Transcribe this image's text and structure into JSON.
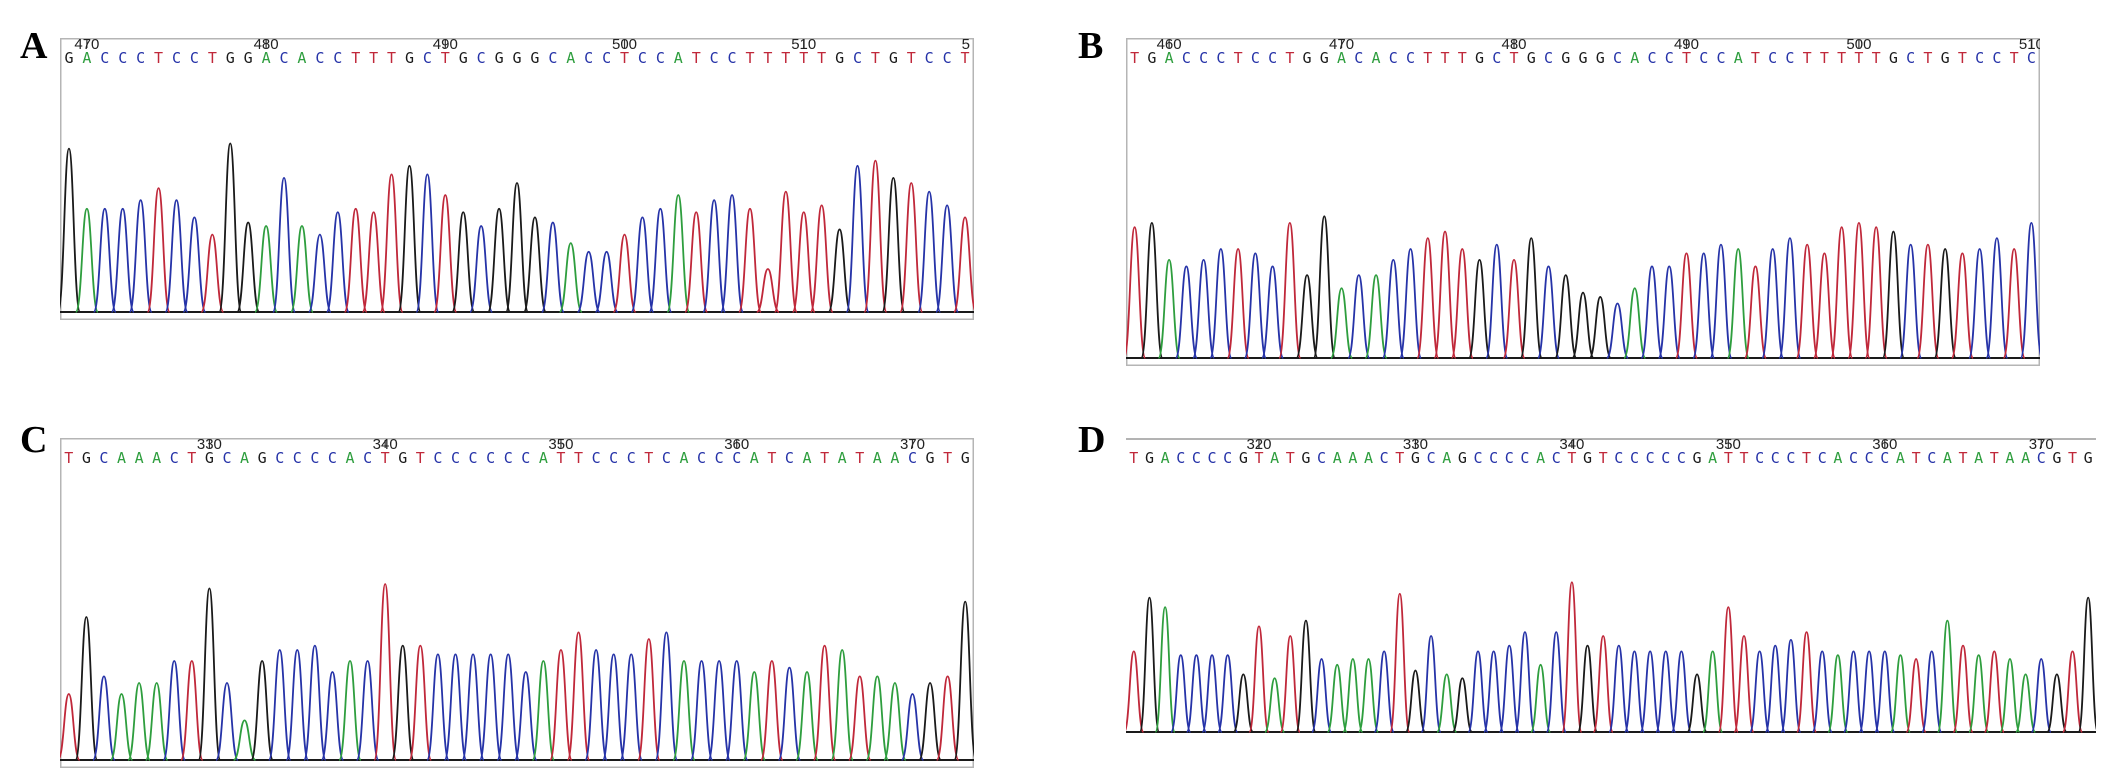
{
  "figure": {
    "colors": {
      "A": "#2e9e3e",
      "C": "#2633a8",
      "G": "#1a1a1a",
      "T": "#c0283a"
    }
  },
  "chart_data": [
    {
      "type": "line",
      "panel": "A",
      "sequence": "GACCCTCCTGGACACCTTTGCTGCGGGCACCTCCATCCTTTTTGCTGTCCT",
      "start_position": 469,
      "position_ticks": [
        470,
        480,
        490,
        500,
        510
      ],
      "partial_tick_label": "5",
      "bases_per_window": 51,
      "peak_heights": [
        0.95,
        0.6,
        0.6,
        0.6,
        0.65,
        0.72,
        0.65,
        0.55,
        0.45,
        0.98,
        0.52,
        0.5,
        0.78,
        0.5,
        0.45,
        0.58,
        0.6,
        0.58,
        0.8,
        0.85,
        0.8,
        0.68,
        0.58,
        0.5,
        0.6,
        0.75,
        0.55,
        0.52,
        0.4,
        0.35,
        0.35,
        0.45,
        0.55,
        0.6,
        0.68,
        0.58,
        0.65,
        0.68,
        0.6,
        0.25,
        0.7,
        0.58,
        0.62,
        0.48,
        0.85,
        0.88,
        0.78,
        0.75,
        0.7,
        0.62,
        0.55
      ]
    },
    {
      "type": "line",
      "panel": "B",
      "sequence": "TGACCCTCCTGGACACCTTTGCTGCGGGCACCTCCATCCTTTTTGCTGTCCTC",
      "start_position": 458,
      "position_ticks": [
        460,
        470,
        480,
        490,
        500,
        510
      ],
      "bases_per_window": 53,
      "peak_heights": [
        0.6,
        0.62,
        0.45,
        0.42,
        0.45,
        0.5,
        0.5,
        0.48,
        0.42,
        0.62,
        0.38,
        0.65,
        0.32,
        0.38,
        0.38,
        0.45,
        0.5,
        0.55,
        0.58,
        0.5,
        0.45,
        0.52,
        0.45,
        0.55,
        0.42,
        0.38,
        0.3,
        0.28,
        0.25,
        0.32,
        0.42,
        0.42,
        0.48,
        0.48,
        0.52,
        0.5,
        0.42,
        0.5,
        0.55,
        0.52,
        0.48,
        0.6,
        0.62,
        0.6,
        0.58,
        0.52,
        0.52,
        0.5,
        0.48,
        0.5,
        0.55,
        0.5,
        0.62
      ]
    },
    {
      "type": "line",
      "panel": "C",
      "sequence": "TGCAAACTGCAGCCCCACTGTCCCCCCATTCCCTCACCCATCATATAACGTG",
      "start_position": 322,
      "position_ticks": [
        330,
        340,
        350,
        360,
        370
      ],
      "bases_per_window": 52,
      "peak_heights": [
        0.3,
        0.65,
        0.38,
        0.3,
        0.35,
        0.35,
        0.45,
        0.45,
        0.78,
        0.35,
        0.18,
        0.45,
        0.5,
        0.5,
        0.52,
        0.4,
        0.45,
        0.45,
        0.8,
        0.52,
        0.52,
        0.48,
        0.48,
        0.48,
        0.48,
        0.48,
        0.4,
        0.45,
        0.5,
        0.58,
        0.5,
        0.48,
        0.48,
        0.55,
        0.58,
        0.45,
        0.45,
        0.45,
        0.45,
        0.4,
        0.45,
        0.42,
        0.4,
        0.52,
        0.5,
        0.38,
        0.38,
        0.35,
        0.3,
        0.35,
        0.38,
        0.72
      ]
    },
    {
      "type": "line",
      "panel": "D",
      "sequence": "TGACCCCGTATGCAAACTGCAGCCCCACTGTCCCCCGATTCCCTCACCCATCATATAACGTG",
      "start_position": 312,
      "position_ticks": [
        320,
        330,
        340,
        350,
        360,
        370
      ],
      "bases_per_window": 62,
      "peak_heights": [
        0.42,
        0.7,
        0.65,
        0.4,
        0.4,
        0.4,
        0.4,
        0.3,
        0.55,
        0.28,
        0.5,
        0.58,
        0.38,
        0.35,
        0.38,
        0.38,
        0.42,
        0.72,
        0.32,
        0.5,
        0.3,
        0.28,
        0.42,
        0.42,
        0.45,
        0.52,
        0.35,
        0.52,
        0.78,
        0.45,
        0.5,
        0.45,
        0.42,
        0.42,
        0.42,
        0.42,
        0.3,
        0.42,
        0.65,
        0.5,
        0.42,
        0.45,
        0.48,
        0.52,
        0.42,
        0.4,
        0.42,
        0.42,
        0.42,
        0.4,
        0.38,
        0.42,
        0.58,
        0.45,
        0.4,
        0.42,
        0.38,
        0.3,
        0.38,
        0.3,
        0.42,
        0.7
      ]
    }
  ],
  "panels": [
    {
      "letter": "A"
    },
    {
      "letter": "B"
    },
    {
      "letter": "C"
    },
    {
      "letter": "D"
    }
  ]
}
